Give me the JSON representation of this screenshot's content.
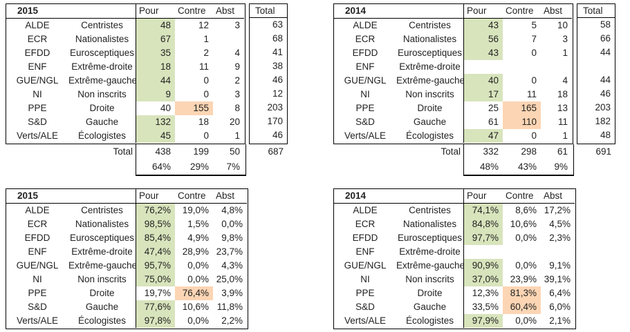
{
  "colors": {
    "highlight_green": "#d8e4bc",
    "highlight_orange": "#fcd5b4",
    "border": "#000000",
    "text": "#222222"
  },
  "columns": {
    "pour": "Pour",
    "contre": "Contre",
    "abst": "Abst",
    "total": "Total",
    "total_row_label": "Total"
  },
  "tables": [
    {
      "year": "2015",
      "type": "counts",
      "rows": [
        {
          "code": "ALDE",
          "label": "Centristes",
          "pour": "48",
          "contre": "12",
          "abst": "3",
          "total": "63",
          "pour_fill": true,
          "contre_fill": false
        },
        {
          "code": "ECR",
          "label": "Nationalistes",
          "pour": "67",
          "contre": "1",
          "abst": "",
          "total": "68",
          "pour_fill": true,
          "contre_fill": false
        },
        {
          "code": "EFDD",
          "label": "Eurosceptiques",
          "pour": "35",
          "contre": "2",
          "abst": "4",
          "total": "41",
          "pour_fill": true,
          "contre_fill": false
        },
        {
          "code": "ENF",
          "label": "Extrême-droite",
          "pour": "18",
          "contre": "11",
          "abst": "9",
          "total": "38",
          "pour_fill": true,
          "contre_fill": false
        },
        {
          "code": "GUE/NGL",
          "label": "Extrême-gauche",
          "pour": "44",
          "contre": "0",
          "abst": "2",
          "total": "46",
          "pour_fill": true,
          "contre_fill": false
        },
        {
          "code": "NI",
          "label": "Non inscrits",
          "pour": "9",
          "contre": "0",
          "abst": "3",
          "total": "12",
          "pour_fill": true,
          "contre_fill": false
        },
        {
          "code": "PPE",
          "label": "Droite",
          "pour": "40",
          "contre": "155",
          "abst": "8",
          "total": "203",
          "pour_fill": false,
          "contre_fill": true
        },
        {
          "code": "S&D",
          "label": "Gauche",
          "pour": "132",
          "contre": "18",
          "abst": "20",
          "total": "170",
          "pour_fill": true,
          "contre_fill": false
        },
        {
          "code": "Verts/ALE",
          "label": "Écologistes",
          "pour": "45",
          "contre": "0",
          "abst": "1",
          "total": "46",
          "pour_fill": true,
          "contre_fill": false
        }
      ],
      "totals": {
        "pour": "438",
        "contre": "199",
        "abst": "50",
        "total": "687"
      },
      "pcts": {
        "pour": "64%",
        "contre": "29%",
        "abst": "7%"
      }
    },
    {
      "year": "2014",
      "type": "counts",
      "rows": [
        {
          "code": "ALDE",
          "label": "Centristes",
          "pour": "43",
          "contre": "5",
          "abst": "10",
          "total": "58",
          "pour_fill": true,
          "contre_fill": false
        },
        {
          "code": "ECR",
          "label": "Nationalistes",
          "pour": "56",
          "contre": "7",
          "abst": "3",
          "total": "66",
          "pour_fill": true,
          "contre_fill": false
        },
        {
          "code": "EFDD",
          "label": "Eurosceptiques",
          "pour": "43",
          "contre": "0",
          "abst": "1",
          "total": "44",
          "pour_fill": true,
          "contre_fill": false
        },
        {
          "code": "ENF",
          "label": "Extrême-droite",
          "pour": "",
          "contre": "",
          "abst": "",
          "total": "",
          "pour_fill": false,
          "contre_fill": false
        },
        {
          "code": "GUE/NGL",
          "label": "Extrême-gauche",
          "pour": "40",
          "contre": "0",
          "abst": "4",
          "total": "44",
          "pour_fill": true,
          "contre_fill": false
        },
        {
          "code": "NI",
          "label": "Non inscrits",
          "pour": "17",
          "contre": "11",
          "abst": "18",
          "total": "46",
          "pour_fill": true,
          "contre_fill": false
        },
        {
          "code": "PPE",
          "label": "Droite",
          "pour": "25",
          "contre": "165",
          "abst": "13",
          "total": "203",
          "pour_fill": false,
          "contre_fill": true
        },
        {
          "code": "S&D",
          "label": "Gauche",
          "pour": "61",
          "contre": "110",
          "abst": "11",
          "total": "182",
          "pour_fill": false,
          "contre_fill": true
        },
        {
          "code": "Verts/ALE",
          "label": "Écologistes",
          "pour": "47",
          "contre": "0",
          "abst": "1",
          "total": "48",
          "pour_fill": true,
          "contre_fill": false
        }
      ],
      "totals": {
        "pour": "332",
        "contre": "298",
        "abst": "61",
        "total": "691"
      },
      "pcts": {
        "pour": "48%",
        "contre": "43%",
        "abst": "9%"
      }
    },
    {
      "year": "2015",
      "type": "percent",
      "rows": [
        {
          "code": "ALDE",
          "label": "Centristes",
          "pour": "76,2%",
          "contre": "19,0%",
          "abst": "4,8%",
          "pour_fill": true,
          "contre_fill": false
        },
        {
          "code": "ECR",
          "label": "Nationalistes",
          "pour": "98,5%",
          "contre": "1,5%",
          "abst": "0,0%",
          "pour_fill": true,
          "contre_fill": false
        },
        {
          "code": "EFDD",
          "label": "Eurosceptiques",
          "pour": "85,4%",
          "contre": "4,9%",
          "abst": "9,8%",
          "pour_fill": true,
          "contre_fill": false
        },
        {
          "code": "ENF",
          "label": "Extrême-droite",
          "pour": "47,4%",
          "contre": "28,9%",
          "abst": "23,7%",
          "pour_fill": true,
          "contre_fill": false
        },
        {
          "code": "GUE/NGL",
          "label": "Extrême-gauche",
          "pour": "95,7%",
          "contre": "0,0%",
          "abst": "4,3%",
          "pour_fill": true,
          "contre_fill": false
        },
        {
          "code": "NI",
          "label": "Non inscrits",
          "pour": "75,0%",
          "contre": "0,0%",
          "abst": "25,0%",
          "pour_fill": true,
          "contre_fill": false
        },
        {
          "code": "PPE",
          "label": "Droite",
          "pour": "19,7%",
          "contre": "76,4%",
          "abst": "3,9%",
          "pour_fill": false,
          "contre_fill": true
        },
        {
          "code": "S&D",
          "label": "Gauche",
          "pour": "77,6%",
          "contre": "10,6%",
          "abst": "11,8%",
          "pour_fill": true,
          "contre_fill": false
        },
        {
          "code": "Verts/ALE",
          "label": "Écologistes",
          "pour": "97,8%",
          "contre": "0,0%",
          "abst": "2,2%",
          "pour_fill": true,
          "contre_fill": false
        }
      ]
    },
    {
      "year": "2014",
      "type": "percent",
      "rows": [
        {
          "code": "ALDE",
          "label": "Centristes",
          "pour": "74,1%",
          "contre": "8,6%",
          "abst": "17,2%",
          "pour_fill": true,
          "contre_fill": false
        },
        {
          "code": "ECR",
          "label": "Nationalistes",
          "pour": "84,8%",
          "contre": "10,6%",
          "abst": "4,5%",
          "pour_fill": true,
          "contre_fill": false
        },
        {
          "code": "EFDD",
          "label": "Eurosceptiques",
          "pour": "97,7%",
          "contre": "0,0%",
          "abst": "2,3%",
          "pour_fill": true,
          "contre_fill": false
        },
        {
          "code": "ENF",
          "label": "Extrême-droite",
          "pour": "",
          "contre": "",
          "abst": "",
          "pour_fill": false,
          "contre_fill": false
        },
        {
          "code": "GUE/NGL",
          "label": "Extrême-gauche",
          "pour": "90,9%",
          "contre": "0,0%",
          "abst": "9,1%",
          "pour_fill": true,
          "contre_fill": false
        },
        {
          "code": "NI",
          "label": "Non inscrits",
          "pour": "37,0%",
          "contre": "23,9%",
          "abst": "39,1%",
          "pour_fill": true,
          "contre_fill": false
        },
        {
          "code": "PPE",
          "label": "Droite",
          "pour": "12,3%",
          "contre": "81,3%",
          "abst": "6,4%",
          "pour_fill": false,
          "contre_fill": true
        },
        {
          "code": "S&D",
          "label": "Gauche",
          "pour": "33,5%",
          "contre": "60,4%",
          "abst": "6,0%",
          "pour_fill": false,
          "contre_fill": true
        },
        {
          "code": "Verts/ALE",
          "label": "Écologistes",
          "pour": "97,9%",
          "contre": "0,0%",
          "abst": "2,1%",
          "pour_fill": true,
          "contre_fill": false
        }
      ]
    }
  ]
}
